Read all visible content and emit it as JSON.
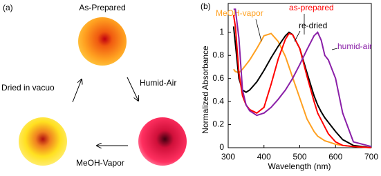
{
  "diagram": {
    "label": "(a)",
    "states": [
      "As-Prepared",
      "Humid-Air",
      "MeOH-Vapor",
      "Dried in vacuo"
    ]
  },
  "chart_data": {
    "type": "line",
    "label": "(b)",
    "x_label": "Wavelength  (nm)",
    "y_label": "Normalized  Absorbance",
    "x": [
      315,
      320,
      330,
      340,
      350,
      360,
      380,
      400,
      420,
      440,
      460,
      470,
      480,
      500,
      520,
      540,
      550,
      560,
      570,
      580,
      600,
      620,
      650,
      700
    ],
    "series": [
      {
        "name": "MeOH-vapor",
        "color": "#ffa020",
        "values": [
          0.68,
          0.66,
          0.65,
          0.68,
          0.72,
          0.76,
          0.86,
          0.97,
          0.99,
          0.92,
          0.79,
          0.7,
          0.61,
          0.43,
          0.25,
          0.14,
          0.1,
          0.08,
          0.06,
          0.05,
          0.03,
          0.02,
          0.01,
          0
        ]
      },
      {
        "name": "re-dried",
        "color": "#000000",
        "values": [
          1.05,
          0.9,
          0.6,
          0.5,
          0.48,
          0.5,
          0.57,
          0.67,
          0.78,
          0.88,
          0.97,
          1.0,
          0.98,
          0.86,
          0.65,
          0.45,
          0.37,
          0.31,
          0.26,
          0.22,
          0.14,
          0.07,
          0.02,
          0
        ]
      },
      {
        "name": "as-prepared",
        "color": "#ff0000",
        "values": [
          1.15,
          1.05,
          0.65,
          0.45,
          0.37,
          0.33,
          0.3,
          0.35,
          0.55,
          0.77,
          0.94,
          0.99,
          0.98,
          0.86,
          0.62,
          0.4,
          0.3,
          0.24,
          0.18,
          0.12,
          0.05,
          0.02,
          0.01,
          0
        ]
      },
      {
        "name": "humid-air",
        "color": "#8a1fa8",
        "values": [
          1.2,
          1.2,
          0.95,
          0.5,
          0.37,
          0.32,
          0.28,
          0.3,
          0.35,
          0.42,
          0.5,
          0.55,
          0.6,
          0.72,
          0.85,
          0.97,
          1.0,
          0.93,
          0.8,
          0.76,
          0.6,
          0.3,
          0.05,
          0.01
        ]
      }
    ],
    "xlim": [
      300,
      700
    ],
    "ylim": [
      0,
      1.25
    ],
    "xticks": [
      300,
      400,
      500,
      600,
      700
    ],
    "yticks": [
      0,
      0.2,
      0.4,
      0.6,
      0.8,
      1
    ]
  }
}
